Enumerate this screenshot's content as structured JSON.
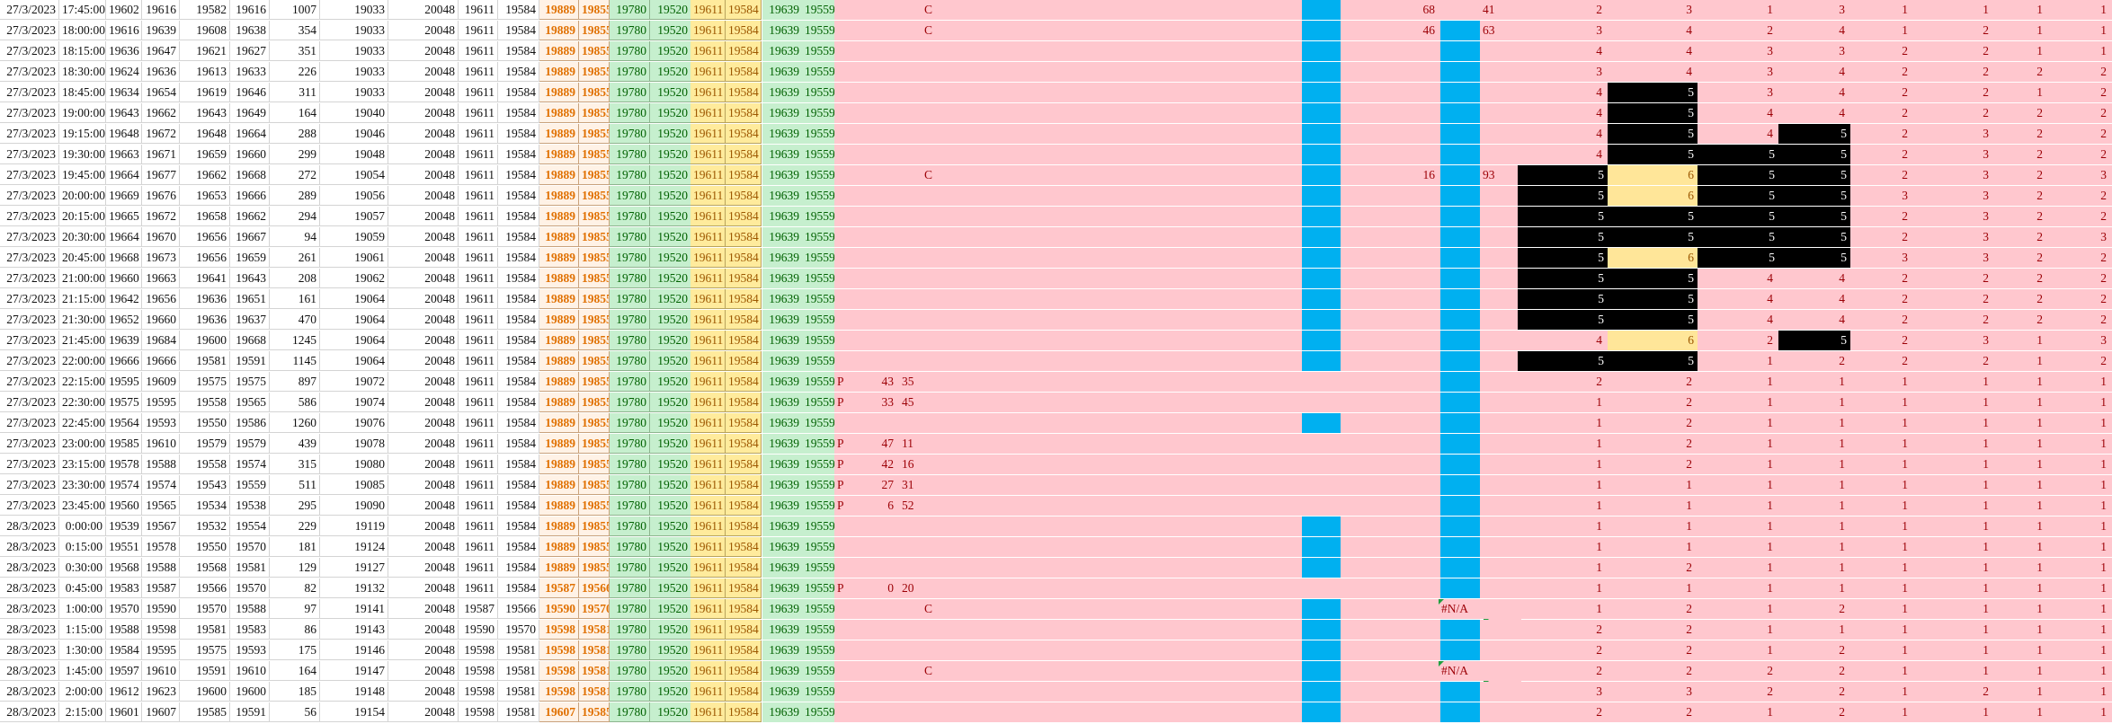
{
  "sheet": {
    "rows": [
      [
        "27/3/2023",
        "17:45:00",
        "19602",
        "19616",
        "19582",
        "19616",
        "1007",
        "19033",
        "20048",
        "19611",
        "19584",
        "19889",
        "19855",
        "19780",
        "19520",
        "19611",
        "19584",
        "19639",
        "19559"
      ],
      [
        "27/3/2023",
        "18:00:00",
        "19616",
        "19639",
        "19608",
        "19638",
        "354",
        "19033",
        "20048",
        "19611",
        "19584",
        "19889",
        "19855",
        "19780",
        "19520",
        "19611",
        "19584",
        "19639",
        "19559"
      ],
      [
        "27/3/2023",
        "18:15:00",
        "19636",
        "19647",
        "19621",
        "19627",
        "351",
        "19033",
        "20048",
        "19611",
        "19584",
        "19889",
        "19855",
        "19780",
        "19520",
        "19611",
        "19584",
        "19639",
        "19559"
      ],
      [
        "27/3/2023",
        "18:30:00",
        "19624",
        "19636",
        "19613",
        "19633",
        "226",
        "19033",
        "20048",
        "19611",
        "19584",
        "19889",
        "19855",
        "19780",
        "19520",
        "19611",
        "19584",
        "19639",
        "19559"
      ],
      [
        "27/3/2023",
        "18:45:00",
        "19634",
        "19654",
        "19619",
        "19646",
        "311",
        "19033",
        "20048",
        "19611",
        "19584",
        "19889",
        "19855",
        "19780",
        "19520",
        "19611",
        "19584",
        "19639",
        "19559"
      ],
      [
        "27/3/2023",
        "19:00:00",
        "19643",
        "19662",
        "19643",
        "19649",
        "164",
        "19040",
        "20048",
        "19611",
        "19584",
        "19889",
        "19855",
        "19780",
        "19520",
        "19611",
        "19584",
        "19639",
        "19559"
      ],
      [
        "27/3/2023",
        "19:15:00",
        "19648",
        "19672",
        "19648",
        "19664",
        "288",
        "19046",
        "20048",
        "19611",
        "19584",
        "19889",
        "19855",
        "19780",
        "19520",
        "19611",
        "19584",
        "19639",
        "19559"
      ],
      [
        "27/3/2023",
        "19:30:00",
        "19663",
        "19671",
        "19659",
        "19660",
        "299",
        "19048",
        "20048",
        "19611",
        "19584",
        "19889",
        "19855",
        "19780",
        "19520",
        "19611",
        "19584",
        "19639",
        "19559"
      ],
      [
        "27/3/2023",
        "19:45:00",
        "19664",
        "19677",
        "19662",
        "19668",
        "272",
        "19054",
        "20048",
        "19611",
        "19584",
        "19889",
        "19855",
        "19780",
        "19520",
        "19611",
        "19584",
        "19639",
        "19559"
      ],
      [
        "27/3/2023",
        "20:00:00",
        "19669",
        "19676",
        "19653",
        "19666",
        "289",
        "19056",
        "20048",
        "19611",
        "19584",
        "19889",
        "19855",
        "19780",
        "19520",
        "19611",
        "19584",
        "19639",
        "19559"
      ],
      [
        "27/3/2023",
        "20:15:00",
        "19665",
        "19672",
        "19658",
        "19662",
        "294",
        "19057",
        "20048",
        "19611",
        "19584",
        "19889",
        "19855",
        "19780",
        "19520",
        "19611",
        "19584",
        "19639",
        "19559"
      ],
      [
        "27/3/2023",
        "20:30:00",
        "19664",
        "19670",
        "19656",
        "19667",
        "94",
        "19059",
        "20048",
        "19611",
        "19584",
        "19889",
        "19855",
        "19780",
        "19520",
        "19611",
        "19584",
        "19639",
        "19559"
      ],
      [
        "27/3/2023",
        "20:45:00",
        "19668",
        "19673",
        "19656",
        "19659",
        "261",
        "19061",
        "20048",
        "19611",
        "19584",
        "19889",
        "19855",
        "19780",
        "19520",
        "19611",
        "19584",
        "19639",
        "19559"
      ],
      [
        "27/3/2023",
        "21:00:00",
        "19660",
        "19663",
        "19641",
        "19643",
        "208",
        "19062",
        "20048",
        "19611",
        "19584",
        "19889",
        "19855",
        "19780",
        "19520",
        "19611",
        "19584",
        "19639",
        "19559"
      ],
      [
        "27/3/2023",
        "21:15:00",
        "19642",
        "19656",
        "19636",
        "19651",
        "161",
        "19064",
        "20048",
        "19611",
        "19584",
        "19889",
        "19855",
        "19780",
        "19520",
        "19611",
        "19584",
        "19639",
        "19559"
      ],
      [
        "27/3/2023",
        "21:30:00",
        "19652",
        "19660",
        "19636",
        "19637",
        "470",
        "19064",
        "20048",
        "19611",
        "19584",
        "19889",
        "19855",
        "19780",
        "19520",
        "19611",
        "19584",
        "19639",
        "19559"
      ],
      [
        "27/3/2023",
        "21:45:00",
        "19639",
        "19684",
        "19600",
        "19668",
        "1245",
        "19064",
        "20048",
        "19611",
        "19584",
        "19889",
        "19855",
        "19780",
        "19520",
        "19611",
        "19584",
        "19639",
        "19559"
      ],
      [
        "27/3/2023",
        "22:00:00",
        "19666",
        "19666",
        "19581",
        "19591",
        "1145",
        "19064",
        "20048",
        "19611",
        "19584",
        "19889",
        "19855",
        "19780",
        "19520",
        "19611",
        "19584",
        "19639",
        "19559"
      ],
      [
        "27/3/2023",
        "22:15:00",
        "19595",
        "19609",
        "19575",
        "19575",
        "897",
        "19072",
        "20048",
        "19611",
        "19584",
        "19889",
        "19855",
        "19780",
        "19520",
        "19611",
        "19584",
        "19639",
        "19559"
      ],
      [
        "27/3/2023",
        "22:30:00",
        "19575",
        "19595",
        "19558",
        "19565",
        "586",
        "19074",
        "20048",
        "19611",
        "19584",
        "19889",
        "19855",
        "19780",
        "19520",
        "19611",
        "19584",
        "19639",
        "19559"
      ],
      [
        "27/3/2023",
        "22:45:00",
        "19564",
        "19593",
        "19550",
        "19586",
        "1260",
        "19076",
        "20048",
        "19611",
        "19584",
        "19889",
        "19855",
        "19780",
        "19520",
        "19611",
        "19584",
        "19639",
        "19559"
      ],
      [
        "27/3/2023",
        "23:00:00",
        "19585",
        "19610",
        "19579",
        "19579",
        "439",
        "19078",
        "20048",
        "19611",
        "19584",
        "19889",
        "19855",
        "19780",
        "19520",
        "19611",
        "19584",
        "19639",
        "19559"
      ],
      [
        "27/3/2023",
        "23:15:00",
        "19578",
        "19588",
        "19558",
        "19574",
        "315",
        "19080",
        "20048",
        "19611",
        "19584",
        "19889",
        "19855",
        "19780",
        "19520",
        "19611",
        "19584",
        "19639",
        "19559"
      ],
      [
        "27/3/2023",
        "23:30:00",
        "19574",
        "19574",
        "19543",
        "19559",
        "511",
        "19085",
        "20048",
        "19611",
        "19584",
        "19889",
        "19855",
        "19780",
        "19520",
        "19611",
        "19584",
        "19639",
        "19559"
      ],
      [
        "27/3/2023",
        "23:45:00",
        "19560",
        "19565",
        "19534",
        "19538",
        "295",
        "19090",
        "20048",
        "19611",
        "19584",
        "19889",
        "19855",
        "19780",
        "19520",
        "19611",
        "19584",
        "19639",
        "19559"
      ],
      [
        "28/3/2023",
        "0:00:00",
        "19539",
        "19567",
        "19532",
        "19554",
        "229",
        "19119",
        "20048",
        "19611",
        "19584",
        "19889",
        "19855",
        "19780",
        "19520",
        "19611",
        "19584",
        "19639",
        "19559"
      ],
      [
        "28/3/2023",
        "0:15:00",
        "19551",
        "19578",
        "19550",
        "19570",
        "181",
        "19124",
        "20048",
        "19611",
        "19584",
        "19889",
        "19855",
        "19780",
        "19520",
        "19611",
        "19584",
        "19639",
        "19559"
      ],
      [
        "28/3/2023",
        "0:30:00",
        "19568",
        "19588",
        "19568",
        "19581",
        "129",
        "19127",
        "20048",
        "19611",
        "19584",
        "19889",
        "19855",
        "19780",
        "19520",
        "19611",
        "19584",
        "19639",
        "19559"
      ],
      [
        "28/3/2023",
        "0:45:00",
        "19583",
        "19587",
        "19566",
        "19570",
        "82",
        "19132",
        "20048",
        "19611",
        "19584",
        "19587",
        "19566",
        "19780",
        "19520",
        "19611",
        "19584",
        "19639",
        "19559"
      ],
      [
        "28/3/2023",
        "1:00:00",
        "19570",
        "19590",
        "19570",
        "19588",
        "97",
        "19141",
        "20048",
        "19587",
        "19566",
        "19590",
        "19570",
        "19780",
        "19520",
        "19611",
        "19584",
        "19639",
        "19559"
      ],
      [
        "28/3/2023",
        "1:15:00",
        "19588",
        "19598",
        "19581",
        "19583",
        "86",
        "19143",
        "20048",
        "19590",
        "19570",
        "19598",
        "19581",
        "19780",
        "19520",
        "19611",
        "19584",
        "19639",
        "19559"
      ],
      [
        "28/3/2023",
        "1:30:00",
        "19584",
        "19595",
        "19575",
        "19593",
        "175",
        "19146",
        "20048",
        "19598",
        "19581",
        "19598",
        "19581",
        "19780",
        "19520",
        "19611",
        "19584",
        "19639",
        "19559"
      ],
      [
        "28/3/2023",
        "1:45:00",
        "19597",
        "19610",
        "19591",
        "19610",
        "164",
        "19147",
        "20048",
        "19598",
        "19581",
        "19598",
        "19581",
        "19780",
        "19520",
        "19611",
        "19584",
        "19639",
        "19559"
      ],
      [
        "28/3/2023",
        "2:00:00",
        "19612",
        "19623",
        "19600",
        "19600",
        "185",
        "19148",
        "20048",
        "19598",
        "19581",
        "19598",
        "19581",
        "19780",
        "19520",
        "19611",
        "19584",
        "19639",
        "19559"
      ],
      [
        "28/3/2023",
        "2:15:00",
        "19601",
        "19607",
        "19585",
        "19591",
        "56",
        "19154",
        "20048",
        "19598",
        "19581",
        "19607",
        "19585",
        "19780",
        "19520",
        "19611",
        "19584",
        "19639",
        "19559"
      ]
    ],
    "pcol": [
      "",
      "",
      "",
      "",
      "",
      "",
      "",
      "",
      "",
      "",
      "",
      "",
      "",
      "",
      "",
      "",
      "",
      "",
      "P",
      "P",
      "",
      "P",
      "P",
      "P",
      "P",
      "",
      "",
      "",
      "P",
      "",
      "",
      "",
      "",
      "",
      ""
    ],
    "pnum1": [
      "",
      "",
      "",
      "",
      "",
      "",
      "",
      "",
      "",
      "",
      "",
      "",
      "",
      "",
      "",
      "",
      "",
      "",
      "43",
      "33",
      "",
      "47",
      "42",
      "27",
      "6",
      "",
      "",
      "",
      "0",
      "",
      "",
      "",
      "",
      "",
      ""
    ],
    "pnum2": [
      "",
      "",
      "",
      "",
      "",
      "",
      "",
      "",
      "",
      "",
      "",
      "",
      "",
      "",
      "",
      "",
      "",
      "",
      "35",
      "45",
      "",
      "11",
      "16",
      "31",
      "52",
      "",
      "",
      "",
      "20",
      "",
      "",
      "",
      "",
      "",
      ""
    ],
    "ccol": [
      "C",
      "C",
      "",
      "",
      "",
      "",
      "",
      "",
      "C",
      "",
      "",
      "",
      "",
      "",
      "",
      "",
      "",
      "",
      "",
      "",
      "",
      "",
      "",
      "",
      "",
      "",
      "",
      "",
      "",
      "C",
      "",
      "",
      "C",
      "",
      ""
    ],
    "cnum1": [
      "68",
      "46",
      "",
      "",
      "",
      "",
      "",
      "",
      "16",
      "",
      "",
      "",
      "",
      "",
      "",
      "",
      "",
      "",
      "",
      "",
      "",
      "",
      "",
      "",
      "",
      "",
      "",
      "",
      "",
      "#N/A",
      "",
      "",
      "#N/A",
      "",
      ""
    ],
    "cnum2": [
      "41",
      "63",
      "",
      "",
      "",
      "",
      "",
      "",
      "93",
      "",
      "",
      "",
      "",
      "",
      "",
      "",
      "",
      "",
      "",
      "",
      "",
      "",
      "",
      "",
      "",
      "",
      "",
      "",
      "",
      "#N/A",
      "",
      "",
      "#N/A",
      "",
      ""
    ],
    "m": [
      [
        "2",
        "3",
        "1",
        "3",
        "1",
        "1",
        "1"
      ],
      [
        "3",
        "4",
        "2",
        "4",
        "1",
        "2",
        "1"
      ],
      [
        "4",
        "4",
        "3",
        "3",
        "2",
        "2",
        "1"
      ],
      [
        "3",
        "4",
        "3",
        "4",
        "2",
        "2",
        "2"
      ],
      [
        "4",
        "5",
        "3",
        "4",
        "2",
        "2",
        "1"
      ],
      [
        "4",
        "5",
        "4",
        "4",
        "2",
        "2",
        "2"
      ],
      [
        "4",
        "5",
        "4",
        "5",
        "2",
        "3",
        "2"
      ],
      [
        "4",
        "5",
        "5",
        "5",
        "2",
        "3",
        "2"
      ],
      [
        "5",
        "6",
        "5",
        "5",
        "2",
        "3",
        "2"
      ],
      [
        "5",
        "6",
        "5",
        "5",
        "3",
        "3",
        "2"
      ],
      [
        "5",
        "5",
        "5",
        "5",
        "2",
        "3",
        "2"
      ],
      [
        "5",
        "5",
        "5",
        "5",
        "2",
        "3",
        "2"
      ],
      [
        "5",
        "6",
        "5",
        "5",
        "3",
        "3",
        "2"
      ],
      [
        "5",
        "5",
        "4",
        "4",
        "2",
        "2",
        "2"
      ],
      [
        "5",
        "5",
        "4",
        "4",
        "2",
        "2",
        "2"
      ],
      [
        "5",
        "5",
        "4",
        "4",
        "2",
        "2",
        "2"
      ],
      [
        "4",
        "6",
        "2",
        "5",
        "2",
        "3",
        "1"
      ],
      [
        "5",
        "5",
        "1",
        "2",
        "2",
        "2",
        "1"
      ],
      [
        "2",
        "2",
        "1",
        "1",
        "1",
        "1",
        "1"
      ],
      [
        "1",
        "2",
        "1",
        "1",
        "1",
        "1",
        "1"
      ],
      [
        "1",
        "2",
        "1",
        "1",
        "1",
        "1",
        "1"
      ],
      [
        "1",
        "2",
        "1",
        "1",
        "1",
        "1",
        "1"
      ],
      [
        "1",
        "2",
        "1",
        "1",
        "1",
        "1",
        "1"
      ],
      [
        "1",
        "1",
        "1",
        "1",
        "1",
        "1",
        "1"
      ],
      [
        "1",
        "1",
        "1",
        "1",
        "1",
        "1",
        "1"
      ],
      [
        "1",
        "1",
        "1",
        "1",
        "1",
        "1",
        "1"
      ],
      [
        "1",
        "1",
        "1",
        "1",
        "1",
        "1",
        "1"
      ],
      [
        "1",
        "2",
        "1",
        "1",
        "1",
        "1",
        "1"
      ],
      [
        "1",
        "1",
        "1",
        "1",
        "1",
        "1",
        "1"
      ],
      [
        "1",
        "2",
        "1",
        "2",
        "1",
        "1",
        "1"
      ],
      [
        "2",
        "2",
        "1",
        "1",
        "1",
        "1",
        "1"
      ],
      [
        "2",
        "2",
        "1",
        "2",
        "1",
        "1",
        "1"
      ],
      [
        "2",
        "2",
        "2",
        "2",
        "1",
        "1",
        "1"
      ],
      [
        "3",
        "3",
        "2",
        "2",
        "1",
        "2",
        "1"
      ],
      [
        "2",
        "2",
        "1",
        "2",
        "1",
        "1",
        "1"
      ]
    ],
    "last_col": [
      "1",
      "1",
      "1",
      "2",
      "2",
      "2",
      "2",
      "2",
      "3",
      "2",
      "2",
      "3",
      "2",
      "2",
      "2",
      "2",
      "3",
      "2",
      "1",
      "1",
      "1",
      "1",
      "1",
      "1",
      "1",
      "1",
      "1",
      "1",
      "1",
      "1",
      "1",
      "1",
      "1",
      "1",
      "1"
    ],
    "colors": {
      "pink": "#ffc7ce",
      "blue": "#00b0f0",
      "black": "#000000",
      "highlight": "#ffe699",
      "orange_text": "#e07000"
    }
  }
}
